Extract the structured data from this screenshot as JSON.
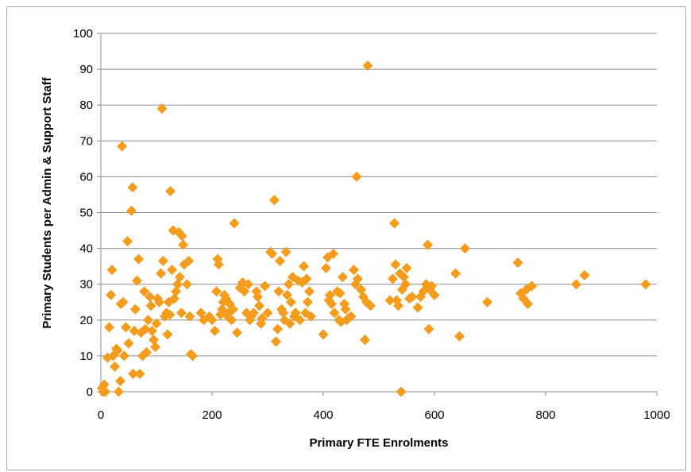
{
  "chart_data": {
    "type": "scatter",
    "title": "",
    "xlabel": "Primary FTE Enrolments",
    "ylabel": "Primary Students per Admin & Support Staff",
    "xlim": [
      0,
      1000
    ],
    "ylim": [
      0,
      100
    ],
    "x_ticks": [
      0,
      200,
      400,
      600,
      800,
      1000
    ],
    "y_ticks": [
      0,
      10,
      20,
      30,
      40,
      50,
      60,
      70,
      80,
      90,
      100
    ],
    "grid": "horizontal",
    "legend": "none",
    "marker": "diamond",
    "colors": {
      "marker": "#F39C1D",
      "grid": "#8c8c8c",
      "axis": "#8c8c8c",
      "border": "#a6a6a6"
    },
    "series": [
      {
        "points": [
          [
            2,
            1
          ],
          [
            4,
            0
          ],
          [
            6,
            2
          ],
          [
            8,
            0
          ],
          [
            12,
            9.5
          ],
          [
            15,
            18
          ],
          [
            18,
            27
          ],
          [
            20,
            34
          ],
          [
            22,
            10
          ],
          [
            25,
            7
          ],
          [
            28,
            12
          ],
          [
            30,
            11.5
          ],
          [
            32,
            0
          ],
          [
            35,
            3
          ],
          [
            36,
            24.5
          ],
          [
            38,
            68.5
          ],
          [
            40,
            25
          ],
          [
            42,
            10
          ],
          [
            45,
            18
          ],
          [
            48,
            42
          ],
          [
            50,
            13.5
          ],
          [
            55,
            50.5
          ],
          [
            57,
            57
          ],
          [
            58,
            5
          ],
          [
            60,
            17
          ],
          [
            62,
            23
          ],
          [
            65,
            31
          ],
          [
            68,
            37
          ],
          [
            70,
            5
          ],
          [
            72,
            16.5
          ],
          [
            75,
            10
          ],
          [
            78,
            28
          ],
          [
            80,
            17.5
          ],
          [
            82,
            11
          ],
          [
            85,
            20
          ],
          [
            88,
            26.5
          ],
          [
            90,
            24
          ],
          [
            92,
            17
          ],
          [
            95,
            14.5
          ],
          [
            98,
            12.5
          ],
          [
            100,
            19
          ],
          [
            102,
            26
          ],
          [
            105,
            25
          ],
          [
            108,
            33
          ],
          [
            110,
            79
          ],
          [
            112,
            36.5
          ],
          [
            115,
            21
          ],
          [
            118,
            22
          ],
          [
            120,
            16
          ],
          [
            122,
            25
          ],
          [
            124,
            21.5
          ],
          [
            125,
            56
          ],
          [
            128,
            34
          ],
          [
            130,
            45
          ],
          [
            132,
            26
          ],
          [
            135,
            28
          ],
          [
            138,
            30
          ],
          [
            140,
            44.5
          ],
          [
            142,
            32
          ],
          [
            145,
            22
          ],
          [
            146,
            43.5
          ],
          [
            148,
            41
          ],
          [
            150,
            35.5
          ],
          [
            155,
            30
          ],
          [
            158,
            36.5
          ],
          [
            160,
            21
          ],
          [
            162,
            10.5
          ],
          [
            165,
            10
          ],
          [
            180,
            22
          ],
          [
            185,
            20
          ],
          [
            195,
            21
          ],
          [
            200,
            20
          ],
          [
            205,
            17
          ],
          [
            208,
            28
          ],
          [
            210,
            37
          ],
          [
            212,
            35.5
          ],
          [
            215,
            21.5
          ],
          [
            218,
            23
          ],
          [
            220,
            25
          ],
          [
            222,
            27
          ],
          [
            225,
            26
          ],
          [
            228,
            21
          ],
          [
            230,
            22
          ],
          [
            232,
            24.5
          ],
          [
            235,
            20
          ],
          [
            238,
            23
          ],
          [
            240,
            47
          ],
          [
            245,
            16.5
          ],
          [
            250,
            29
          ],
          [
            255,
            30.5
          ],
          [
            258,
            28
          ],
          [
            262,
            22
          ],
          [
            265,
            30
          ],
          [
            268,
            20
          ],
          [
            270,
            21
          ],
          [
            275,
            22
          ],
          [
            280,
            28
          ],
          [
            282,
            26.5
          ],
          [
            285,
            24
          ],
          [
            288,
            19
          ],
          [
            290,
            20.5
          ],
          [
            295,
            29.5
          ],
          [
            300,
            22
          ],
          [
            305,
            39
          ],
          [
            308,
            38.5
          ],
          [
            312,
            53.5
          ],
          [
            315,
            14
          ],
          [
            318,
            17.5
          ],
          [
            320,
            28
          ],
          [
            322,
            36.5
          ],
          [
            325,
            23
          ],
          [
            328,
            22
          ],
          [
            330,
            20
          ],
          [
            333,
            39
          ],
          [
            335,
            27
          ],
          [
            338,
            30
          ],
          [
            340,
            19
          ],
          [
            342,
            25
          ],
          [
            345,
            32
          ],
          [
            348,
            21
          ],
          [
            350,
            22
          ],
          [
            355,
            31
          ],
          [
            358,
            20
          ],
          [
            362,
            30.5
          ],
          [
            365,
            35
          ],
          [
            368,
            22
          ],
          [
            370,
            31.5
          ],
          [
            372,
            25
          ],
          [
            375,
            28
          ],
          [
            378,
            21
          ],
          [
            400,
            16
          ],
          [
            405,
            34.5
          ],
          [
            408,
            37.5
          ],
          [
            410,
            25.5
          ],
          [
            412,
            27
          ],
          [
            415,
            24.5
          ],
          [
            418,
            38.5
          ],
          [
            420,
            22
          ],
          [
            425,
            28
          ],
          [
            428,
            20
          ],
          [
            430,
            27.5
          ],
          [
            432,
            19.5
          ],
          [
            435,
            32
          ],
          [
            438,
            24.5
          ],
          [
            440,
            23
          ],
          [
            442,
            20
          ],
          [
            445,
            20.5
          ],
          [
            450,
            21
          ],
          [
            455,
            34
          ],
          [
            458,
            30
          ],
          [
            460,
            60
          ],
          [
            462,
            31.5
          ],
          [
            468,
            28.5
          ],
          [
            472,
            26.5
          ],
          [
            475,
            14.5
          ],
          [
            478,
            25
          ],
          [
            480,
            91
          ],
          [
            485,
            24
          ],
          [
            520,
            25.5
          ],
          [
            525,
            31.5
          ],
          [
            528,
            47
          ],
          [
            530,
            35.5
          ],
          [
            532,
            25.5
          ],
          [
            535,
            24
          ],
          [
            538,
            33
          ],
          [
            540,
            0
          ],
          [
            542,
            28.5
          ],
          [
            545,
            32
          ],
          [
            548,
            30
          ],
          [
            550,
            34.5
          ],
          [
            555,
            26
          ],
          [
            560,
            26.5
          ],
          [
            570,
            23.5
          ],
          [
            575,
            26.5
          ],
          [
            580,
            28
          ],
          [
            585,
            30
          ],
          [
            588,
            41
          ],
          [
            590,
            17.5
          ],
          [
            592,
            28.5
          ],
          [
            595,
            29.5
          ],
          [
            600,
            27
          ],
          [
            638,
            33
          ],
          [
            645,
            15.5
          ],
          [
            655,
            40
          ],
          [
            695,
            25
          ],
          [
            750,
            36
          ],
          [
            755,
            27.5
          ],
          [
            760,
            26
          ],
          [
            765,
            28.5
          ],
          [
            768,
            24.5
          ],
          [
            775,
            29.5
          ],
          [
            855,
            30
          ],
          [
            870,
            32.5
          ],
          [
            980,
            30
          ]
        ]
      }
    ]
  }
}
